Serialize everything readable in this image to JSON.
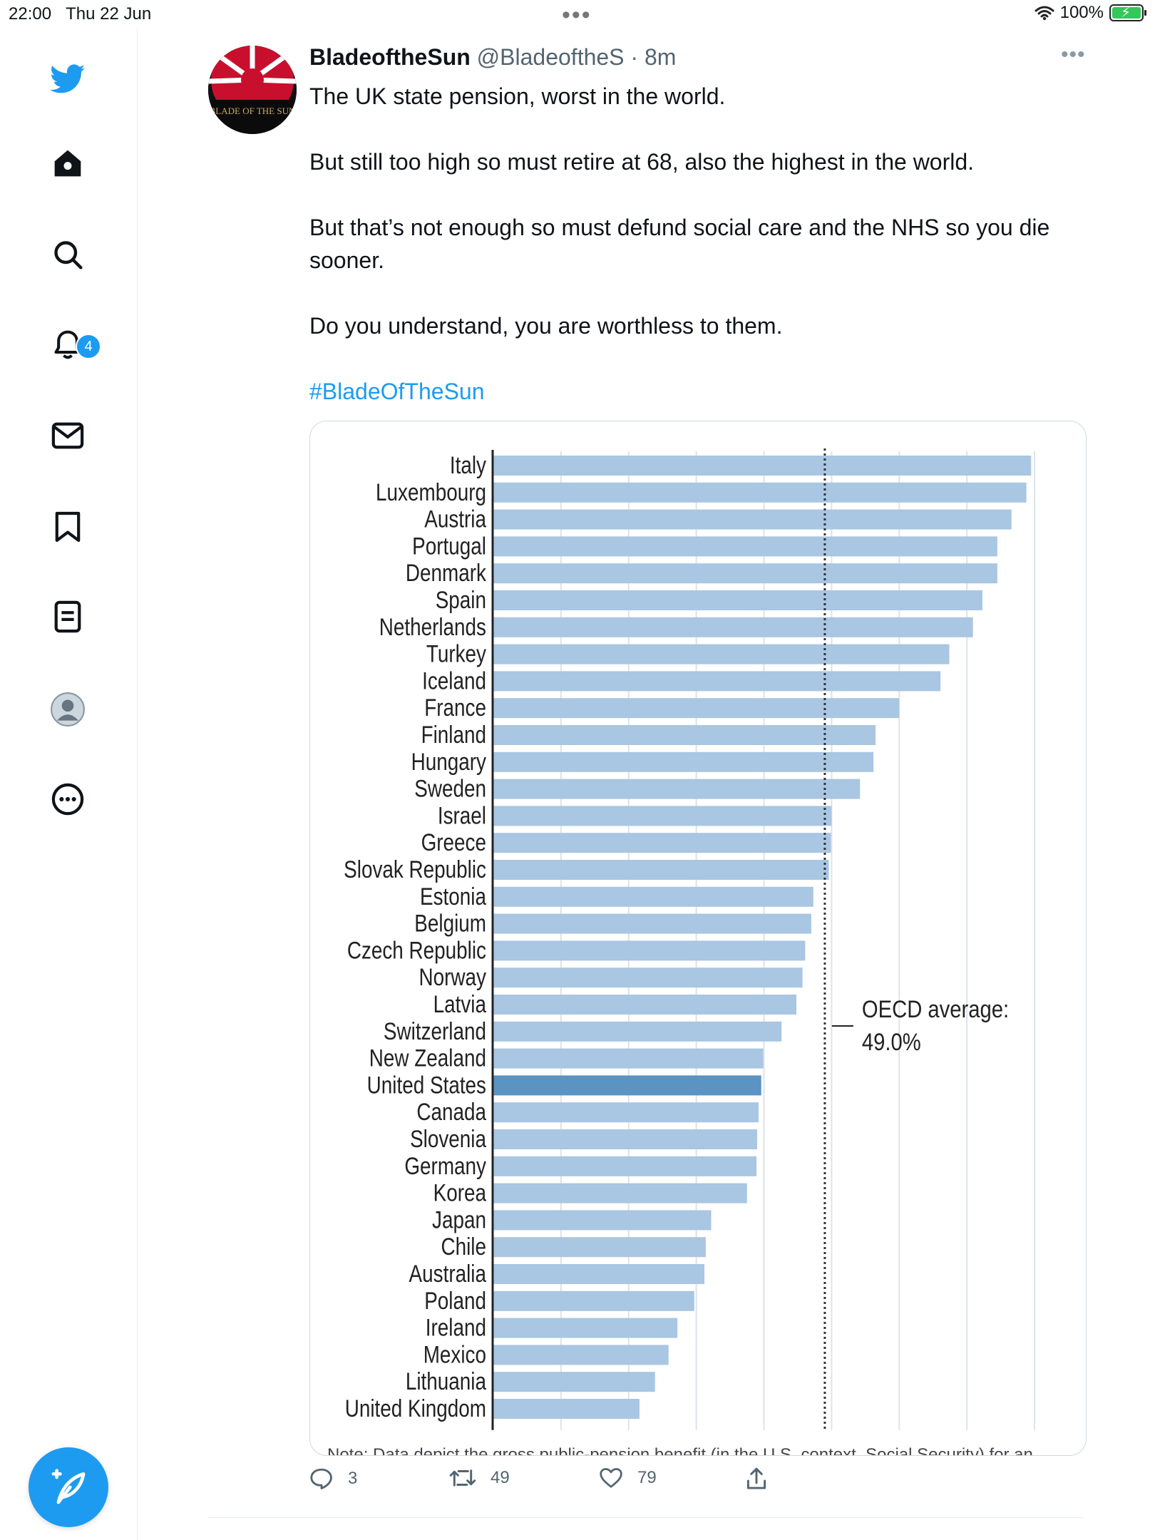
{
  "status_bar": {
    "time": "22:00",
    "date": "Thu 22 Jun",
    "battery": "100%",
    "icons": [
      "wifi-icon",
      "battery-charging-icon"
    ]
  },
  "sidebar": {
    "items": [
      {
        "name": "twitter-logo-icon"
      },
      {
        "name": "home-icon"
      },
      {
        "name": "search-icon"
      },
      {
        "name": "notifications-icon",
        "badge": "4"
      },
      {
        "name": "messages-icon"
      },
      {
        "name": "bookmarks-icon"
      },
      {
        "name": "lists-icon"
      },
      {
        "name": "profile-icon"
      },
      {
        "name": "more-icon"
      }
    ],
    "compose_icon": "compose-feather-icon"
  },
  "tweet": {
    "author_name": "BladeoftheSun",
    "handle_time": "@BladeoftheS · 8m",
    "avatar_text": "BLADE OF THE SUN",
    "lines": [
      "The UK state pension, worst in the world.",
      "But still too high so must retire at 68, also the highest in the  world.",
      "But that’s not enough so must defund social care and the NHS so you die sooner.",
      "Do you understand, you are worthless to them."
    ],
    "hashtag": "#BladeOfTheSun",
    "note": "Note: Data depict the gross public-pension benefit (in the U.S. context, Social Security) for an",
    "actions": {
      "replies": "3",
      "retweets": "49",
      "likes": "79"
    }
  },
  "chart_data": {
    "type": "bar",
    "orientation": "horizontal",
    "categories": [
      "Italy",
      "Luxembourg",
      "Austria",
      "Portugal",
      "Denmark",
      "Spain",
      "Netherlands",
      "Turkey",
      "Iceland",
      "France",
      "Finland",
      "Hungary",
      "Sweden",
      "Israel",
      "Greece",
      "Slovak Republic",
      "Estonia",
      "Belgium",
      "Czech Republic",
      "Norway",
      "Latvia",
      "Switzerland",
      "New Zealand",
      "United States",
      "Canada",
      "Slovenia",
      "Germany",
      "Korea",
      "Japan",
      "Chile",
      "Australia",
      "Poland",
      "Ireland",
      "Mexico",
      "Lithuania",
      "United Kingdom"
    ],
    "values": [
      79.5,
      78.8,
      76.6,
      74.5,
      74.5,
      72.3,
      70.9,
      67.4,
      66.1,
      60.0,
      56.5,
      56.2,
      54.2,
      50.0,
      49.9,
      49.6,
      47.3,
      47.0,
      46.1,
      45.7,
      44.8,
      42.6,
      39.9,
      39.6,
      39.2,
      39.0,
      38.9,
      37.5,
      32.2,
      31.4,
      31.2,
      29.7,
      27.2,
      25.9,
      23.9,
      21.6
    ],
    "highlight": "United States",
    "xlim": [
      0,
      80
    ],
    "grid": true,
    "average_value": 49.0,
    "average_label": [
      "OECD average:",
      "49.0%"
    ],
    "colors": {
      "bar": "#a9c6e2",
      "highlight": "#5b93c2",
      "grid": "#dde3ea",
      "average_line": "#333333"
    }
  }
}
